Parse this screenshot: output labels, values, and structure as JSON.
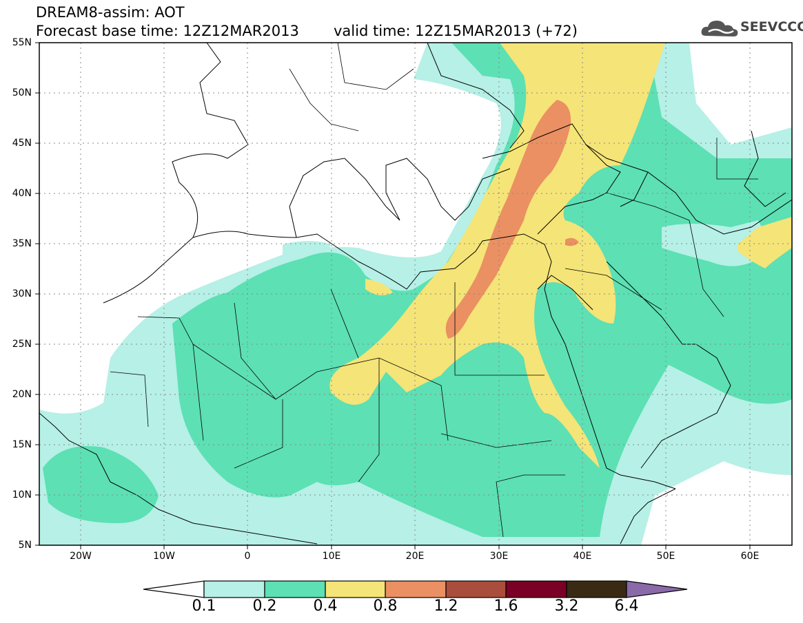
{
  "header": {
    "line1": "DREAM8-assim: AOT",
    "line2": "Forecast base time: 12Z12MAR2013",
    "line3": "valid time: 12Z15MAR2013 (+72)"
  },
  "logo": {
    "text": "SEEVCCC",
    "icon": "cloud-logo-icon"
  },
  "axes": {
    "lat_labels": [
      "55N",
      "50N",
      "45N",
      "40N",
      "35N",
      "30N",
      "25N",
      "20N",
      "15N",
      "10N",
      "5N"
    ],
    "lon_labels": [
      "20W",
      "10W",
      "0",
      "10E",
      "20E",
      "30E",
      "40E",
      "50E",
      "60E"
    ]
  },
  "colorbar": {
    "labels": [
      "0.1",
      "0.2",
      "0.4",
      "0.8",
      "1.2",
      "1.6",
      "3.2",
      "6.4"
    ],
    "colors": [
      "#ffffff",
      "#b6f0e6",
      "#5ce0b4",
      "#f5e477",
      "#ea9063",
      "#a94e3c",
      "#7a0025",
      "#3a2a14",
      "#8a6aa8"
    ]
  },
  "colors": {
    "c1": "#b6f0e6",
    "c2": "#5ce0b4",
    "c3": "#f5e477",
    "c4": "#ea9063"
  }
}
